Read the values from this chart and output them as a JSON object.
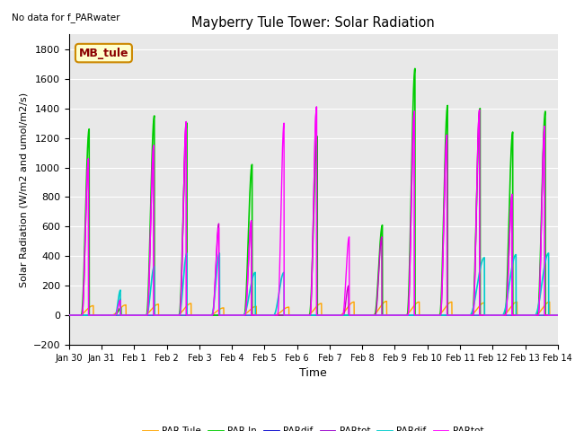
{
  "title": "Mayberry Tule Tower: Solar Radiation",
  "subtitle": "No data for f_PARwater",
  "ylabel": "Solar Radiation (W/m2 and umol/m2/s)",
  "xlabel": "Time",
  "ylim": [
    -200,
    1900
  ],
  "yticks": [
    -200,
    0,
    200,
    400,
    600,
    800,
    1000,
    1200,
    1400,
    1600,
    1800
  ],
  "background_color": "#e8e8e8",
  "legend_labels": [
    "PAR Tule",
    "PAR In",
    "PARdif",
    "PARtot",
    "PARdif",
    "PARtot"
  ],
  "legend_colors": [
    "#ffa500",
    "#00cc00",
    "#0000cc",
    "#9900cc",
    "#00cccc",
    "#ff00ff"
  ],
  "annotation_box": "MB_tule",
  "x_start": 0,
  "x_end": 15,
  "x_tick_labels": [
    "Jan 30",
    "Jan 31",
    "Feb 1",
    "Feb 2",
    "Feb 3",
    "Feb 4",
    "Feb 5",
    "Feb 6",
    "Feb 7",
    "Feb 8",
    "Feb 9",
    "Feb 10",
    "Feb 11",
    "Feb 12",
    "Feb 13",
    "Feb 14"
  ],
  "x_tick_positions": [
    0,
    1,
    2,
    3,
    4,
    5,
    6,
    7,
    8,
    9,
    10,
    11,
    12,
    13,
    14,
    15
  ]
}
